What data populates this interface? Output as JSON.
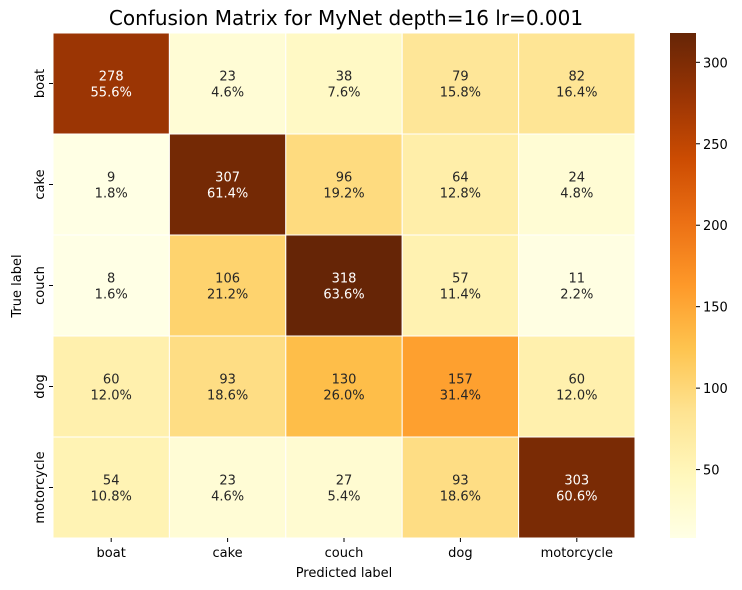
{
  "chart_data": {
    "type": "heatmap",
    "title": "Confusion Matrix for MyNet depth=16 lr=0.001",
    "xlabel": "Predicted label",
    "ylabel": "True label",
    "x_categories": [
      "boat",
      "cake",
      "couch",
      "dog",
      "motorcycle"
    ],
    "y_categories": [
      "boat",
      "cake",
      "couch",
      "dog",
      "motorcycle"
    ],
    "values": [
      [
        278,
        23,
        38,
        79,
        82
      ],
      [
        9,
        307,
        96,
        64,
        24
      ],
      [
        8,
        106,
        318,
        57,
        11
      ],
      [
        60,
        93,
        130,
        157,
        60
      ],
      [
        54,
        23,
        27,
        93,
        303
      ]
    ],
    "percentages": [
      [
        "55.6%",
        "4.6%",
        "7.6%",
        "15.8%",
        "16.4%"
      ],
      [
        "1.8%",
        "61.4%",
        "19.2%",
        "12.8%",
        "4.8%"
      ],
      [
        "1.6%",
        "21.2%",
        "63.6%",
        "11.4%",
        "2.2%"
      ],
      [
        "12.0%",
        "18.6%",
        "26.0%",
        "31.4%",
        "12.0%"
      ],
      [
        "10.8%",
        "4.6%",
        "5.4%",
        "18.6%",
        "60.6%"
      ]
    ],
    "colormap": "YlOrBr",
    "colorbar": {
      "min": 8,
      "max": 318,
      "ticks": [
        50,
        100,
        150,
        200,
        250,
        300
      ]
    },
    "grid": false,
    "legend": "colorbar-right"
  }
}
